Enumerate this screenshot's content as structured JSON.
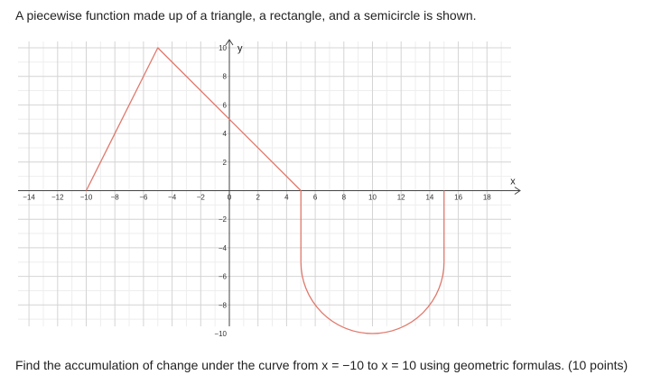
{
  "question": {
    "intro": "A piecewise function made up of a triangle, a rectangle, and a semicircle is shown.",
    "prompt": "Find the accumulation of change under the curve from x = −10 to x = 10 using geometric formulas. (10 points)"
  },
  "chart_data": {
    "type": "line",
    "xlabel": "x",
    "ylabel": "y",
    "xlim": [
      -15,
      20
    ],
    "ylim": [
      -11,
      11
    ],
    "x_ticks": [
      -14,
      -12,
      -10,
      -8,
      -6,
      -4,
      -2,
      0,
      2,
      4,
      6,
      8,
      10,
      12,
      14,
      16,
      18
    ],
    "y_ticks": [
      -10,
      -8,
      -6,
      -4,
      -2,
      2,
      4,
      6,
      8,
      10
    ],
    "grid": true,
    "series": [
      {
        "color": "#e0786b",
        "segments": [
          {
            "shape": "triangle",
            "points": [
              [
                -10,
                0
              ],
              [
                -5,
                10
              ],
              [
                5,
                0
              ]
            ]
          },
          {
            "shape": "rectangle-side",
            "points": [
              [
                5,
                0
              ],
              [
                5,
                -5
              ]
            ]
          },
          {
            "shape": "semicircle",
            "center": [
              10,
              -5
            ],
            "radius": 5,
            "from": [
              5,
              -5
            ],
            "to": [
              15,
              -5
            ],
            "bottom": [
              10,
              -10
            ]
          },
          {
            "shape": "rectangle-side",
            "points": [
              [
                15,
                -5
              ],
              [
                15,
                0
              ]
            ]
          }
        ]
      }
    ]
  },
  "colors": {
    "curve": "#e0786b",
    "grid_major": "#d4d4d4",
    "grid_minor": "#eeeeee",
    "axis": "#444444"
  }
}
